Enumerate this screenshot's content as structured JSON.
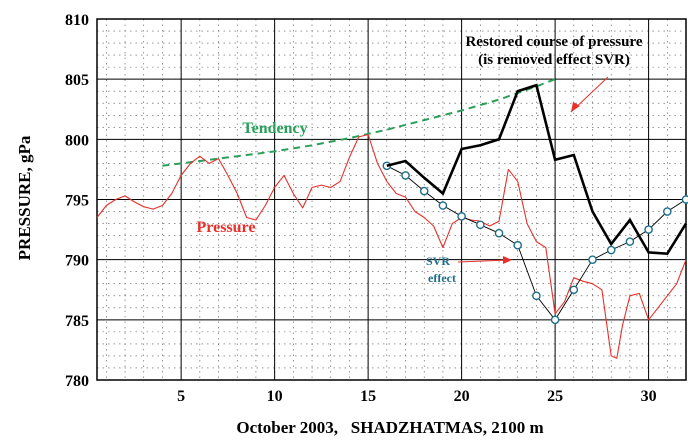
{
  "chart_data": {
    "type": "line",
    "title": "",
    "xlabel": "October 2003,   SHADZHATMAS, 2100 m",
    "ylabel": "PRESSURE, gPa",
    "xlim": [
      0.5,
      32
    ],
    "ylim": [
      780,
      810
    ],
    "x_ticks": [
      5,
      10,
      15,
      20,
      25,
      30
    ],
    "y_ticks": [
      780,
      785,
      790,
      795,
      800,
      805,
      810
    ],
    "grid": true,
    "legend": "none",
    "series": [
      {
        "name": "Pressure",
        "color": "#e8302a",
        "style": "thin-line",
        "x": [
          0.5,
          1.0,
          1.5,
          2.0,
          2.5,
          3.0,
          3.5,
          4.0,
          4.5,
          5.0,
          5.5,
          6.0,
          6.5,
          7.0,
          7.5,
          8.0,
          8.5,
          9.0,
          9.5,
          10.0,
          10.5,
          11.0,
          11.5,
          12.0,
          12.5,
          13.0,
          13.5,
          14.0,
          14.5,
          15.0,
          15.5,
          16.0,
          16.5,
          17.0,
          17.5,
          18.0,
          18.5,
          19.0,
          19.5,
          20.0,
          20.5,
          21.0,
          21.5,
          22.0,
          22.5,
          23.0,
          23.5,
          24.0,
          24.5,
          25.0,
          25.5,
          26.0,
          26.5,
          27.0,
          27.5,
          28.0,
          28.3,
          28.6,
          29.0,
          29.5,
          30.0,
          30.5,
          31.0,
          31.5,
          32.0
        ],
        "y": [
          793.5,
          794.5,
          795.0,
          795.3,
          794.8,
          794.4,
          794.2,
          794.5,
          795.5,
          797.0,
          798.0,
          798.6,
          798.0,
          798.4,
          797.0,
          795.5,
          793.5,
          793.3,
          794.5,
          796.0,
          797.0,
          795.5,
          794.3,
          796.0,
          796.2,
          796.0,
          796.5,
          798.5,
          800.2,
          800.4,
          798.0,
          796.5,
          795.5,
          795.2,
          794.0,
          793.5,
          792.8,
          791.0,
          793.0,
          793.5,
          793.3,
          793.2,
          792.8,
          793.2,
          797.5,
          796.5,
          793.0,
          791.5,
          791.0,
          785.5,
          786.5,
          788.5,
          788.2,
          788.0,
          787.5,
          782.0,
          781.8,
          784.5,
          787.0,
          787.2,
          785.0,
          786.0,
          787.0,
          788.0,
          790.0
        ]
      },
      {
        "name": "Restored course of pressure",
        "color": "#000000",
        "style": "thick-line",
        "x": [
          16,
          17,
          18,
          19,
          20,
          21,
          22,
          23,
          24,
          25,
          26,
          27,
          28,
          29,
          30,
          31,
          32
        ],
        "y": [
          797.8,
          798.2,
          796.8,
          795.5,
          799.2,
          799.5,
          800.0,
          804.0,
          804.5,
          798.3,
          798.7,
          794.0,
          791.3,
          793.3,
          790.6,
          790.5,
          793.0
        ]
      },
      {
        "name": "SVR effect",
        "color": "#1e6e8a",
        "style": "circle-markers",
        "x": [
          16,
          17,
          18,
          19,
          20,
          21,
          22,
          23,
          24,
          25,
          26,
          27,
          28,
          29,
          30,
          31,
          32
        ],
        "y": [
          797.8,
          797.0,
          795.7,
          794.5,
          793.6,
          792.9,
          792.2,
          791.2,
          787.0,
          785.0,
          787.5,
          790.0,
          790.8,
          791.5,
          792.5,
          794.0,
          795.0
        ]
      },
      {
        "name": "Tendency",
        "color": "#2aa05a",
        "style": "dashed-line",
        "x": [
          4,
          6,
          8,
          10,
          12,
          14,
          16,
          18,
          20,
          22,
          24,
          25
        ],
        "y": [
          797.8,
          798.2,
          798.6,
          799.0,
          799.5,
          800.1,
          800.8,
          801.6,
          802.4,
          803.3,
          804.4,
          805.0
        ]
      }
    ],
    "annotations": {
      "restored_line1": "Restored course of pressure",
      "restored_line2": "(is removed effect SVR)",
      "tendency": "Tendency",
      "pressure": "Pressure",
      "svr_line1": "SVR",
      "svr_line2": "effect"
    }
  }
}
